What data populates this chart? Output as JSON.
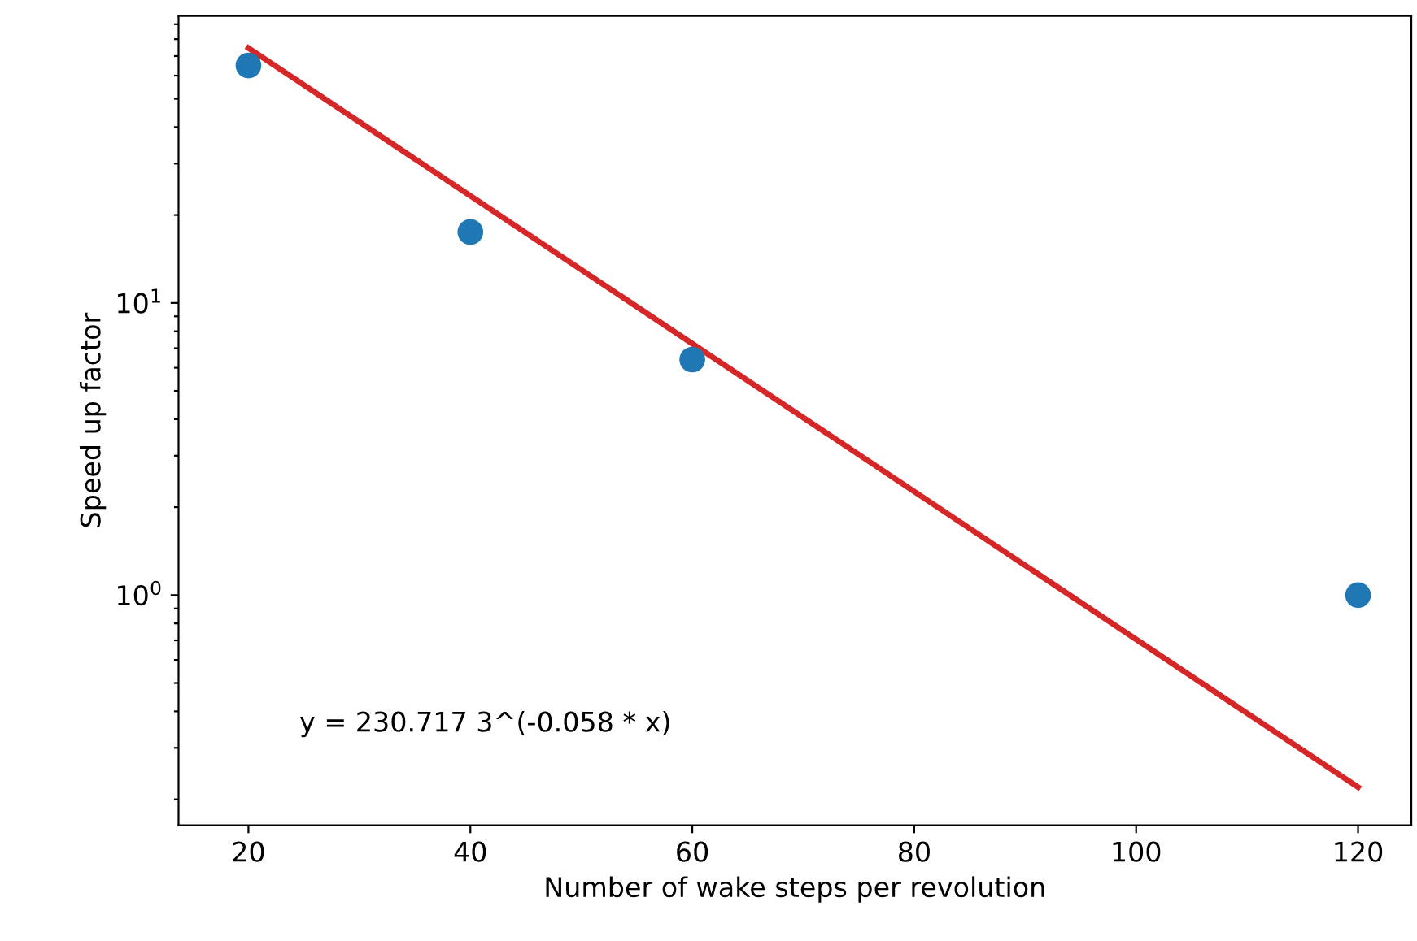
{
  "chart_data": {
    "type": "scatter",
    "xlabel": "Number of wake steps per revolution",
    "ylabel": "Speed up factor",
    "log": "y",
    "grid": false,
    "legend": false,
    "series": [
      {
        "marker": "circle",
        "color": "#1f77b4",
        "x": [
          20,
          40,
          60,
          120
        ],
        "values": [
          65,
          17.5,
          6.4,
          1.0
        ]
      },
      {
        "type": "line",
        "color": "#d62728",
        "line_style": "solid",
        "x": [
          20,
          120
        ],
        "values": [
          74.6,
          0.22
        ]
      }
    ],
    "xlim": [
      13.7,
      124.8
    ],
    "xticks": [
      20,
      40,
      60,
      80,
      100,
      120
    ],
    "ylim": [
      0.163,
      96
    ],
    "yticks": [
      {
        "value": 0.2,
        "label": null
      },
      {
        "value": 0.3,
        "label": null
      },
      {
        "value": 0.4,
        "label": null
      },
      {
        "value": 0.5,
        "label": null
      },
      {
        "value": 0.6,
        "label": null
      },
      {
        "value": 0.7,
        "label": null
      },
      {
        "value": 0.8,
        "label": null
      },
      {
        "value": 0.9,
        "label": null
      },
      {
        "value": 1,
        "label": "10$^{0}$"
      },
      {
        "value": 2,
        "label": null
      },
      {
        "value": 3,
        "label": null
      },
      {
        "value": 4,
        "label": null
      },
      {
        "value": 5,
        "label": null
      },
      {
        "value": 6,
        "label": null
      },
      {
        "value": 7,
        "label": null
      },
      {
        "value": 8,
        "label": null
      },
      {
        "value": 9,
        "label": null
      },
      {
        "value": 10,
        "label": "10$^{1}$"
      },
      {
        "value": 20,
        "label": null
      },
      {
        "value": 30,
        "label": null
      },
      {
        "value": 40,
        "label": null
      },
      {
        "value": 50,
        "label": null
      },
      {
        "value": 60,
        "label": null
      },
      {
        "value": 70,
        "label": null
      },
      {
        "value": 80,
        "label": null
      },
      {
        "value": 90,
        "label": null
      }
    ],
    "annotations": [
      "y = 230.717 3^(-0.058 * x)"
    ]
  }
}
